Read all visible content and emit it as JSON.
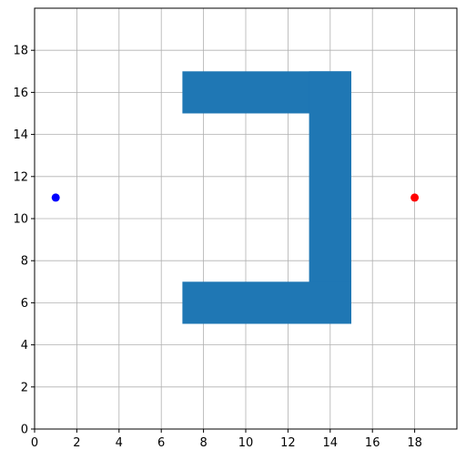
{
  "chart_data": {
    "type": "scatter",
    "title": "",
    "xlabel": "",
    "ylabel": "",
    "xlim": [
      0,
      20
    ],
    "ylim": [
      0,
      20
    ],
    "xticks": [
      0,
      2,
      4,
      6,
      8,
      10,
      12,
      14,
      16,
      18
    ],
    "yticks": [
      0,
      2,
      4,
      6,
      8,
      10,
      12,
      14,
      16,
      18
    ],
    "grid": true,
    "obstacle_color": "#1f77b4",
    "obstacles": [
      {
        "x0": 7,
        "y0": 15,
        "x1": 15,
        "y1": 17
      },
      {
        "x0": 13,
        "y0": 5,
        "x1": 15,
        "y1": 17
      },
      {
        "x0": 7,
        "y0": 5,
        "x1": 15,
        "y1": 7
      }
    ],
    "points": [
      {
        "x": 1,
        "y": 11,
        "color": "#0000ff"
      },
      {
        "x": 18,
        "y": 11,
        "color": "#ff0000"
      }
    ]
  }
}
